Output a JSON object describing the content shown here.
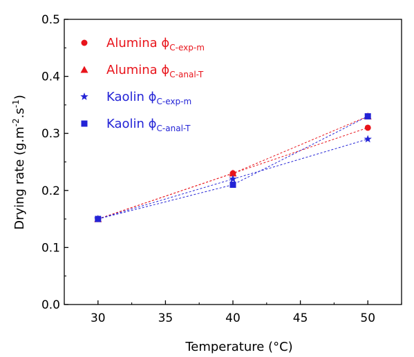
{
  "chart_data": {
    "type": "scatter",
    "xlabel": "Temperature (°C)",
    "ylabel_parts": [
      "Drying rate (g.m",
      "-2",
      ".s",
      "-1",
      ")"
    ],
    "xlim": [
      27.5,
      52.5
    ],
    "ylim": [
      0.0,
      0.5
    ],
    "x_ticks": [
      30,
      35,
      40,
      45,
      50
    ],
    "y_ticks": [
      0.0,
      0.1,
      0.2,
      0.3,
      0.4,
      0.5
    ],
    "x_tick_labels": [
      "30",
      "35",
      "40",
      "45",
      "50"
    ],
    "y_tick_labels": [
      "0.0",
      "0.1",
      "0.2",
      "0.3",
      "0.4",
      "0.5"
    ],
    "grid": false,
    "legend_position": "top-left",
    "series": [
      {
        "name": "Alumina",
        "subscript": "C-exp-m",
        "marker": "circle",
        "color": "#e8141b",
        "x": [
          30,
          40,
          50
        ],
        "y": [
          0.15,
          0.23,
          0.31
        ]
      },
      {
        "name": "Alumina",
        "subscript": "C-anal-T",
        "marker": "triangle",
        "color": "#e8141b",
        "x": [
          30,
          40,
          50
        ],
        "y": [
          0.15,
          0.23,
          0.33
        ]
      },
      {
        "name": "Kaolin",
        "subscript": "C-exp-m",
        "marker": "star",
        "color": "#2323d6",
        "x": [
          30,
          40,
          50
        ],
        "y": [
          0.15,
          0.22,
          0.29
        ]
      },
      {
        "name": "Kaolin",
        "subscript": "C-anal-T",
        "marker": "square",
        "color": "#2323d6",
        "x": [
          30,
          40,
          50
        ],
        "y": [
          0.15,
          0.21,
          0.33
        ]
      }
    ],
    "phi_symbol": "ϕ"
  }
}
